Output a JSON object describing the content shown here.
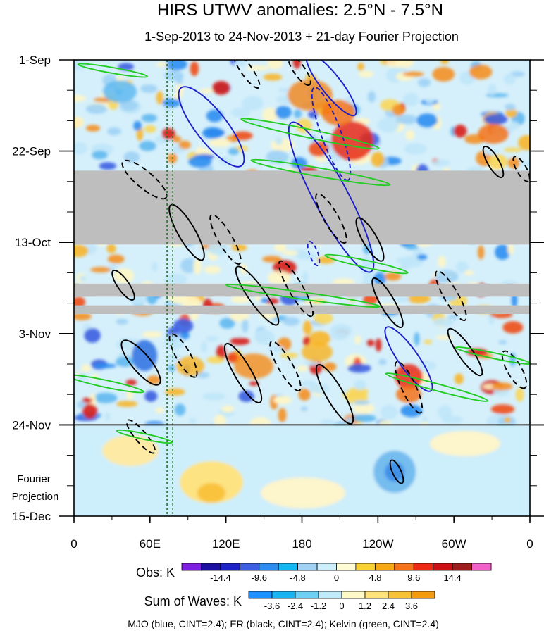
{
  "chart_data": {
    "type": "heatmap",
    "title": "HIRS UTWV anomalies: 2.5°N - 7.5°N",
    "subtitle": "1-Sep-2013 to 24-Nov-2013 + 21-day Fourier Projection",
    "x_axis": {
      "label": "",
      "range_deg_east": [
        0,
        360
      ],
      "ticks": [
        "0",
        "60E",
        "120E",
        "180",
        "120W",
        "60W",
        "0"
      ],
      "tick_values_deg_east": [
        0,
        60,
        120,
        180,
        240,
        300,
        360
      ]
    },
    "y_axis": {
      "label": "",
      "range": [
        "1-Sep-2013",
        "15-Dec-2013"
      ],
      "ticks": [
        "1-Sep",
        "22-Sep",
        "13-Oct",
        "3-Nov",
        "24-Nov",
        "15-Dec"
      ],
      "tick_values_day": [
        0,
        21,
        42,
        63,
        84,
        105
      ]
    },
    "observation_end_day": 84,
    "projection_label": [
      "Fourier",
      "Projection"
    ],
    "missing_data_bands_day": [
      [
        25.5,
        42.5
      ],
      [
        51.5,
        54.5
      ],
      [
        56.5,
        58.5
      ]
    ],
    "vertical_reference_lines_deg_east": [
      73.5,
      78.0
    ],
    "obs_colorbar": {
      "label": "Obs: K",
      "tick_labels": [
        "-14.4",
        "-9.6",
        "-4.8",
        "0",
        "4.8",
        "9.6",
        "14.4"
      ],
      "colors": [
        "#7f1fe0",
        "#1a0f9e",
        "#1e23c8",
        "#3c5ee0",
        "#2b8ef0",
        "#11b6f2",
        "#9fd2f5",
        "#cdeefb",
        "#fffbd4",
        "#f8d233",
        "#f8a814",
        "#f47318",
        "#ee2a14",
        "#cc1015",
        "#9e1e1e",
        "#f060c8"
      ]
    },
    "waves_colorbar": {
      "label": "Sum of Waves: K",
      "tick_labels": [
        "-3.6",
        "-2.4",
        "-1.2",
        "0",
        "1.2",
        "2.4",
        "3.6"
      ],
      "colors": [
        "#1e90ff",
        "#1eb4f4",
        "#6fd0f6",
        "#bfeafa",
        "#fff9c8",
        "#ffe27a",
        "#f9c13a",
        "#f59b12"
      ]
    },
    "series": [
      {
        "name": "MJO",
        "color": "#1e1ec8",
        "cint": 2.4
      },
      {
        "name": "ER",
        "color": "#000000",
        "cint": 2.4
      },
      {
        "name": "Kelvin",
        "color": "#22cc22",
        "cint": 2.4
      }
    ],
    "footnote": "MJO (blue, CINT=2.4); ER (black, CINT=2.4); Kelvin (green, CINT=2.4)"
  }
}
